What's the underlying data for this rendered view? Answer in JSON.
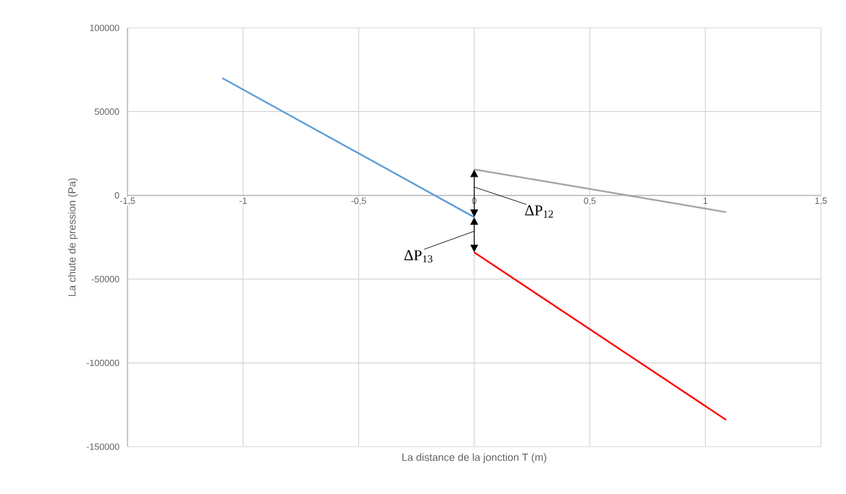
{
  "chart_data": {
    "type": "line",
    "xlabel": "La distance de la jonction T (m)",
    "ylabel": "La chute de pression (Pa)",
    "series": [
      {
        "color": "#5b9bd5",
        "x": [
          -1.09,
          0
        ],
        "values": [
          70000,
          -13000
        ]
      },
      {
        "color": "#a5a5a5",
        "x": [
          0,
          1.09
        ],
        "values": [
          15500,
          -10000
        ]
      },
      {
        "color": "#ff0000",
        "x": [
          0,
          1.09
        ],
        "values": [
          -34000,
          -134000
        ]
      }
    ],
    "xlim": [
      -1.5,
      1.5
    ],
    "xticks": [
      {
        "value": -1.5,
        "label": "-1,5"
      },
      {
        "value": -1,
        "label": "-1"
      },
      {
        "value": -0.5,
        "label": "-0,5"
      },
      {
        "value": 0,
        "label": "0"
      },
      {
        "value": 0.5,
        "label": "0,5"
      },
      {
        "value": 1,
        "label": "1"
      },
      {
        "value": 1.5,
        "label": "1,5"
      }
    ],
    "ylim": [
      -150000,
      100000
    ],
    "yticks": [
      -150000,
      -100000,
      -50000,
      0,
      50000,
      100000
    ],
    "grid": true,
    "marker": "none",
    "line_style": "solid",
    "annotations": [
      "ΔP$_{12}$",
      "ΔP$_{13}$"
    ]
  }
}
